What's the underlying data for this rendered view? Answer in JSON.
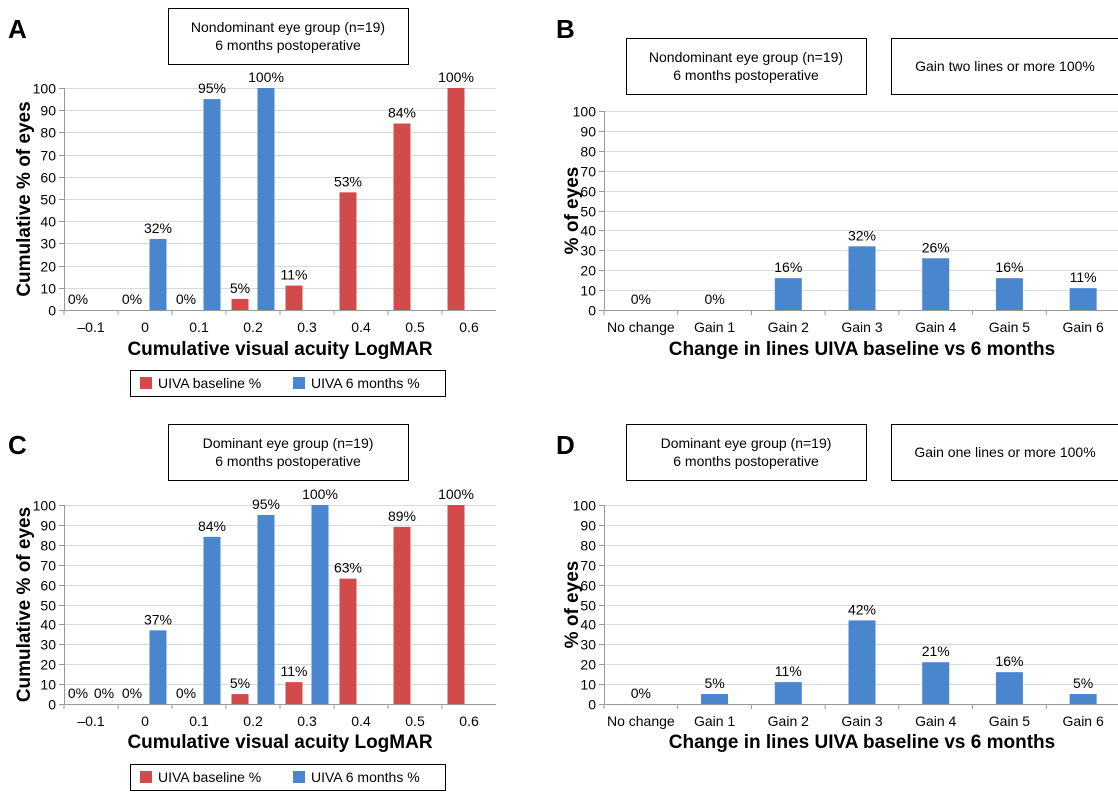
{
  "colors": {
    "baseline": "#d24b4b",
    "six_months": "#4a86cd",
    "grid": "#d9d9d9",
    "axis": "#999999"
  },
  "chart_data": [
    {
      "panel": "A",
      "type": "bar",
      "info_boxes": [
        [
          "Nondominant eye group (n=19)",
          "6 months postoperative"
        ]
      ],
      "categories": [
        "–0.1",
        "0",
        "0.1",
        "0.2",
        "0.3",
        "0.4",
        "0.5",
        "0.6"
      ],
      "series": [
        {
          "name": "UIVA baseline %",
          "values": [
            0,
            0,
            0,
            5,
            11,
            53,
            84,
            100
          ],
          "labels": [
            "0%",
            "0%",
            "0%",
            "5%",
            "11%",
            "53%",
            "84%",
            "100%"
          ]
        },
        {
          "name": "UIVA 6 months %",
          "values": [
            0,
            32,
            95,
            100,
            null,
            null,
            null,
            null
          ],
          "labels": [
            null,
            "32%",
            "95%",
            "100%",
            null,
            null,
            null,
            null
          ]
        }
      ],
      "xlabel": "Cumulative visual acuity LogMAR",
      "ylabel": "Cumulative % of eyes",
      "ylim": [
        0,
        100
      ],
      "yticks": [
        "0",
        "10",
        "20",
        "30",
        "40",
        "50",
        "60",
        "70",
        "80",
        "90",
        "100"
      ],
      "grid": true,
      "legend": [
        "UIVA baseline %",
        "UIVA 6 months %"
      ],
      "legend_placement": "bottom"
    },
    {
      "panel": "B",
      "type": "bar",
      "info_boxes": [
        [
          "Nondominant eye group (n=19)",
          "6 months postoperative"
        ],
        [
          "Gain two lines or more 100%"
        ]
      ],
      "categories": [
        "No change",
        "Gain 1",
        "Gain 2",
        "Gain 3",
        "Gain 4",
        "Gain 5",
        "Gain 6"
      ],
      "series": [
        {
          "values": [
            0,
            0,
            16,
            32,
            26,
            16,
            11
          ],
          "labels": [
            "0%",
            "0%",
            "16%",
            "32%",
            "26%",
            "16%",
            "11%"
          ]
        }
      ],
      "xlabel": "Change in lines UIVA baseline vs 6 months",
      "ylabel": "% of eyes",
      "ylim": [
        0,
        100
      ],
      "yticks": [
        "0",
        "10",
        "20",
        "30",
        "40",
        "50",
        "60",
        "70",
        "80",
        "90",
        "100"
      ],
      "grid": true
    },
    {
      "panel": "C",
      "type": "bar",
      "info_boxes": [
        [
          "Dominant eye group (n=19)",
          "6 months postoperative"
        ]
      ],
      "categories": [
        "–0.1",
        "0",
        "0.1",
        "0.2",
        "0.3",
        "0.4",
        "0.5",
        "0.6"
      ],
      "series": [
        {
          "name": "UIVA baseline %",
          "values": [
            0,
            0,
            0,
            5,
            11,
            63,
            89,
            100
          ],
          "labels": [
            "0%",
            "0%",
            "0%",
            "5%",
            "11%",
            "63%",
            "89%",
            "100%"
          ]
        },
        {
          "name": "UIVA 6 months %",
          "values": [
            0,
            37,
            84,
            95,
            100,
            null,
            null,
            null
          ],
          "labels": [
            "0%",
            "37%",
            "84%",
            "95%",
            "100%",
            null,
            null,
            null
          ]
        }
      ],
      "xlabel": "Cumulative visual acuity LogMAR",
      "ylabel": "Cumulative % of eyes",
      "ylim": [
        0,
        100
      ],
      "yticks": [
        "0",
        "10",
        "20",
        "30",
        "40",
        "50",
        "60",
        "70",
        "80",
        "90",
        "100"
      ],
      "grid": true,
      "legend": [
        "UIVA baseline %",
        "UIVA 6 months %"
      ],
      "legend_placement": "bottom"
    },
    {
      "panel": "D",
      "type": "bar",
      "info_boxes": [
        [
          "Dominant eye group (n=19)",
          "6 months postoperative"
        ],
        [
          "Gain one lines or more 100%"
        ]
      ],
      "categories": [
        "No change",
        "Gain 1",
        "Gain 2",
        "Gain 3",
        "Gain 4",
        "Gain 5",
        "Gain 6"
      ],
      "series": [
        {
          "values": [
            0,
            5,
            11,
            42,
            21,
            16,
            5
          ],
          "labels": [
            "0%",
            "5%",
            "11%",
            "42%",
            "21%",
            "16%",
            "5%"
          ]
        }
      ],
      "xlabel": "Change in lines UIVA baseline vs 6 months",
      "ylabel": "% of eyes",
      "ylim": [
        0,
        100
      ],
      "yticks": [
        "0",
        "10",
        "20",
        "30",
        "40",
        "50",
        "60",
        "70",
        "80",
        "90",
        "100"
      ],
      "grid": true
    }
  ]
}
